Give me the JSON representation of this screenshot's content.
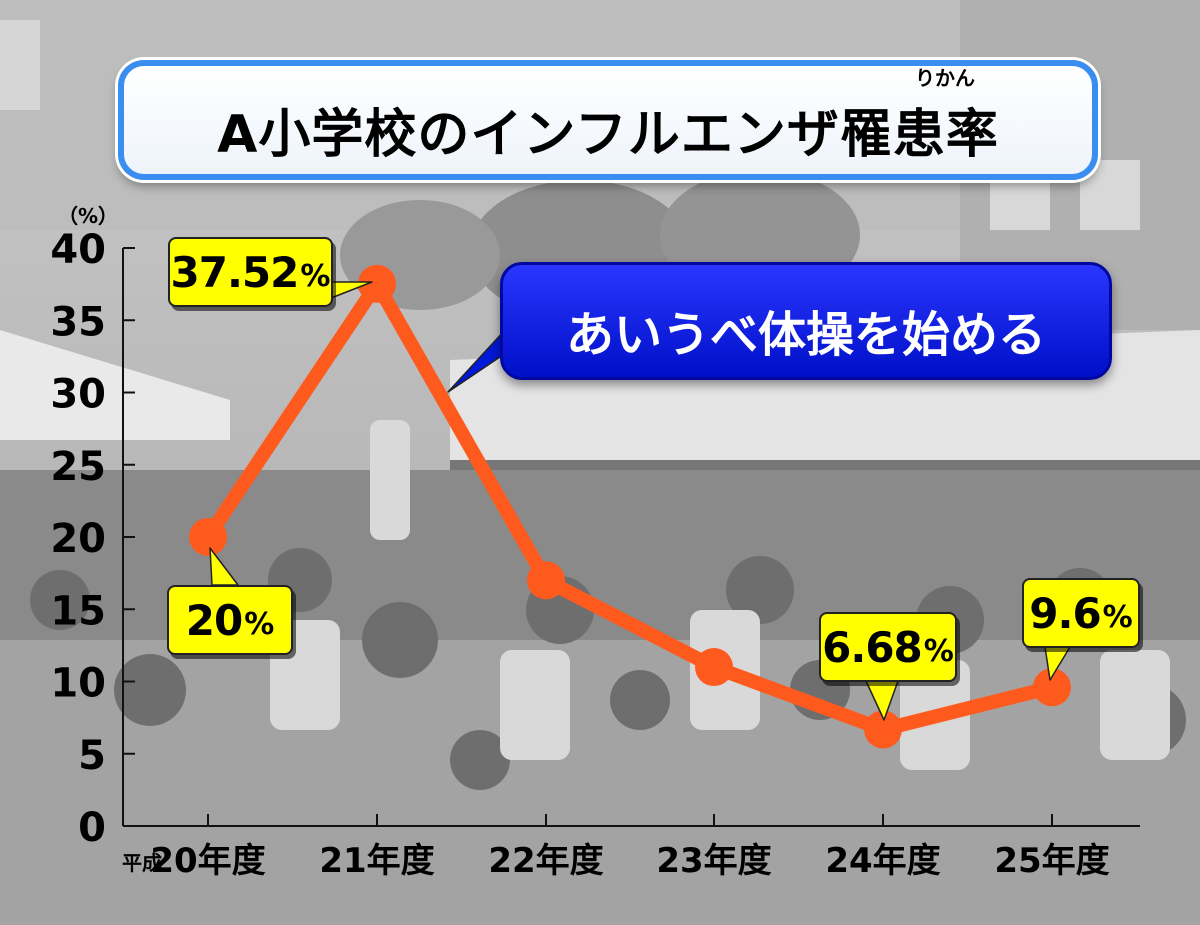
{
  "chart_data": {
    "type": "line",
    "title": "A小学校のインフルエンザ罹患率",
    "title_ruby": "りかん",
    "y_unit": "（%）",
    "x_prefix": "平成",
    "categories": [
      "20年度",
      "21年度",
      "22年度",
      "23年度",
      "24年度",
      "25年度"
    ],
    "values": [
      20,
      37.52,
      17,
      11,
      6.68,
      9.6
    ],
    "ylim": [
      0,
      40
    ],
    "yticks": [
      0,
      5,
      10,
      15,
      20,
      25,
      30,
      35,
      40
    ],
    "data_labels": [
      {
        "index": 0,
        "number": "20",
        "unit": "%"
      },
      {
        "index": 1,
        "number": "37.52",
        "unit": "%"
      },
      {
        "index": 4,
        "number": "6.68",
        "unit": "%"
      },
      {
        "index": 5,
        "number": "9.6",
        "unit": "%"
      }
    ],
    "annotation": "あいうべ体操を始める",
    "line_color": "#ff5a1e"
  }
}
